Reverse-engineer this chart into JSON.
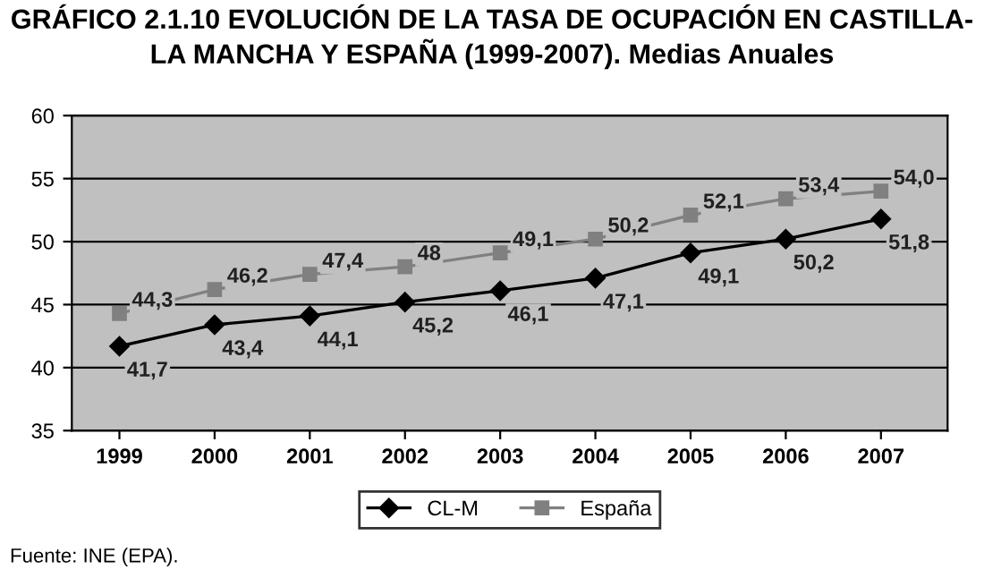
{
  "chart_data": {
    "type": "line",
    "title": "GRÁFICO 2.1.10 EVOLUCIÓN DE LA TASA DE OCUPACIÓN EN CASTILLA-\nLA MANCHA Y ESPAÑA (1999-2007). Medias Anuales",
    "categories": [
      "1999",
      "2000",
      "2001",
      "2002",
      "2003",
      "2004",
      "2005",
      "2006",
      "2007"
    ],
    "series": [
      {
        "name": "CL-M",
        "color": "#000000",
        "marker": "diamond",
        "values": [
          41.7,
          43.4,
          44.1,
          45.2,
          46.1,
          47.1,
          49.1,
          50.2,
          51.8
        ],
        "value_labels": [
          "41,7",
          "43,4",
          "44,1",
          "45,2",
          "46,1",
          "47,1",
          "49,1",
          "50,2",
          "51,8"
        ]
      },
      {
        "name": "España",
        "color": "#808080",
        "marker": "square",
        "values": [
          44.3,
          46.2,
          47.4,
          48,
          49.1,
          50.2,
          52.1,
          53.4,
          54.0
        ],
        "value_labels": [
          "44,3",
          "46,2",
          "47,4",
          "48",
          "49,1",
          "50,2",
          "52,1",
          "53,4",
          "54,0"
        ]
      }
    ],
    "ylim": [
      35,
      60
    ],
    "yticks": [
      35,
      40,
      45,
      50,
      55,
      60
    ],
    "grid": "y",
    "legend": "bottom",
    "line_style": "solid",
    "annotations": [
      "Fuente: INE (EPA)."
    ]
  }
}
